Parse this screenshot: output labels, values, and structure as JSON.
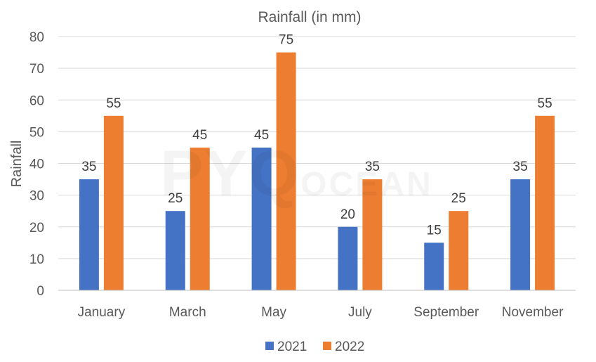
{
  "watermark": {
    "big": "PYQ",
    "small": "OCEAN"
  },
  "chart_data": {
    "type": "bar",
    "title": "Rainfall (in mm)",
    "xlabel": "",
    "ylabel": "Rainfall",
    "categories": [
      "January",
      "March",
      "May",
      "July",
      "September",
      "November"
    ],
    "series": [
      {
        "name": "2021",
        "values": [
          35,
          25,
          45,
          20,
          15,
          35
        ],
        "color": "#4472C4"
      },
      {
        "name": "2022",
        "values": [
          55,
          45,
          75,
          35,
          25,
          55
        ],
        "color": "#ED7D31"
      }
    ],
    "ylim": [
      0,
      80
    ],
    "yticks": [
      0,
      10,
      20,
      30,
      40,
      50,
      60,
      70,
      80
    ],
    "grid": true,
    "legend_position": "bottom",
    "data_labels": true
  }
}
